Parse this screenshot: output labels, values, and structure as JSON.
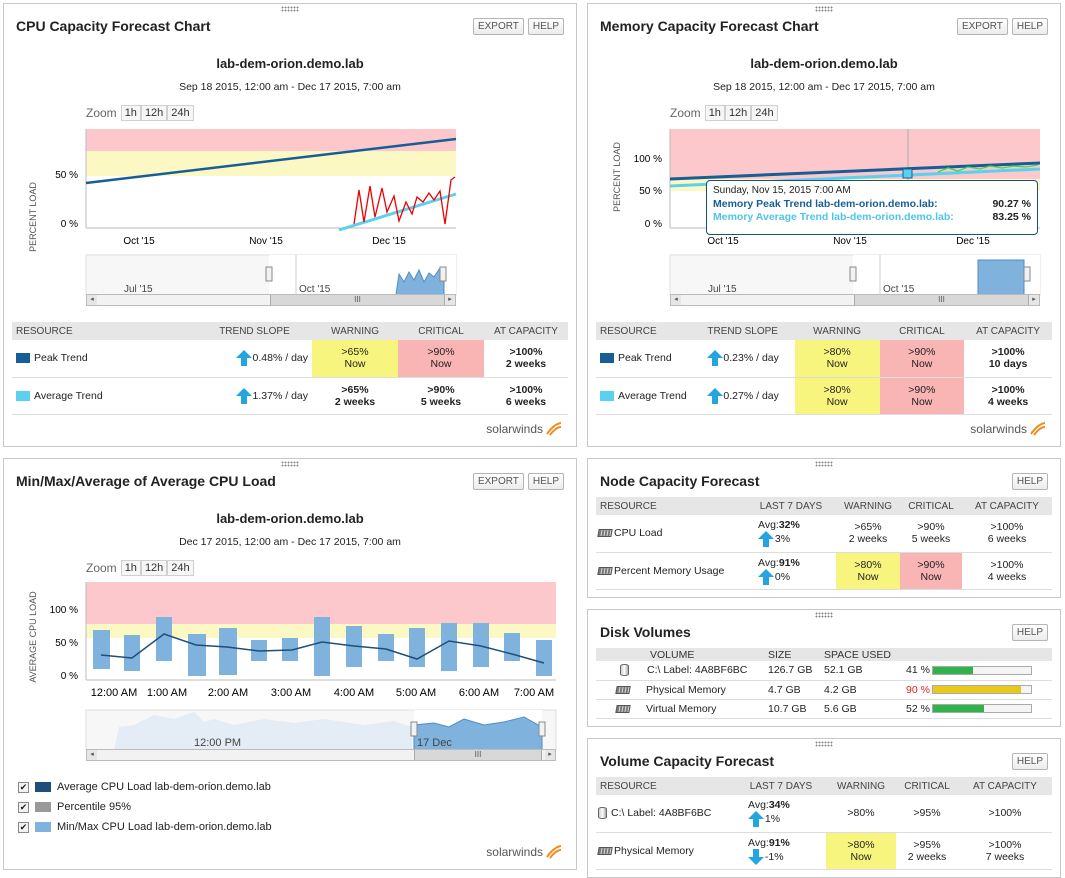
{
  "cpu_forecast": {
    "title": "CPU Capacity Forecast Chart",
    "export_label": "EXPORT",
    "help_label": "HELP",
    "node": "lab-dem-orion.demo.lab",
    "range": "Sep 18 2015, 12:00 am - Dec 17 2015, 7:00 am",
    "zoom_label": "Zoom",
    "zoom_options": [
      "1h",
      "12h",
      "24h"
    ],
    "ylabel": "PERCENT LOAD",
    "yticks": [
      "50 %",
      "0 %"
    ],
    "xticks": [
      "Oct '15",
      "Nov '15",
      "Dec '15"
    ],
    "nav_labels": [
      "Jul '15",
      "Oct '15"
    ],
    "columns": [
      "RESOURCE",
      "TREND SLOPE",
      "WARNING",
      "CRITICAL",
      "AT CAPACITY"
    ],
    "rows": [
      {
        "name": "Peak Trend",
        "color": "#175e96",
        "slope": "0.48% / day",
        "warning": ">65%",
        "warning_when": "Now",
        "critical": ">90%",
        "critical_when": "Now",
        "capacity": ">100%",
        "capacity_when": "2 weeks"
      },
      {
        "name": "Average Trend",
        "color": "#5bd0ef",
        "slope": "1.37% / day",
        "warning": ">65%",
        "warning_when": "2 weeks",
        "critical": ">90%",
        "critical_when": "5 weeks",
        "capacity": ">100%",
        "capacity_when": "6 weeks"
      }
    ],
    "logo": "solarwinds"
  },
  "mem_forecast": {
    "title": "Memory Capacity Forecast Chart",
    "export_label": "EXPORT",
    "help_label": "HELP",
    "node": "lab-dem-orion.demo.lab",
    "range": "Sep 18 2015, 12:00 am - Dec 17 2015, 7:00 am",
    "zoom_label": "Zoom",
    "zoom_options": [
      "1h",
      "12h",
      "24h"
    ],
    "ylabel": "PERCENT LOAD",
    "yticks": [
      "100 %",
      "50 %",
      "0 %"
    ],
    "xticks": [
      "Oct '15",
      "Nov '15",
      "Dec '15"
    ],
    "nav_labels": [
      "Jul '15",
      "Oct '15"
    ],
    "tooltip": {
      "date": "Sunday, Nov 15, 2015 7:00 AM",
      "peak_label": "Memory Peak Trend lab-dem-orion.demo.lab:",
      "peak_value": "90.27 %",
      "avg_label": "Memory Average Trend lab-dem-orion.demo.lab:",
      "avg_value": "83.25 %"
    },
    "columns": [
      "RESOURCE",
      "TREND SLOPE",
      "WARNING",
      "CRITICAL",
      "AT CAPACITY"
    ],
    "rows": [
      {
        "name": "Peak Trend",
        "color": "#175e96",
        "slope": "0.23% / day",
        "warning": ">80%",
        "warning_when": "Now",
        "critical": ">90%",
        "critical_when": "Now",
        "capacity": ">100%",
        "capacity_when": "10 days"
      },
      {
        "name": "Average Trend",
        "color": "#5bd0ef",
        "slope": "0.27% / day",
        "warning": ">80%",
        "warning_when": "Now",
        "critical": ">90%",
        "critical_when": "Now",
        "capacity": ">100%",
        "capacity_when": "4 weeks"
      }
    ],
    "logo": "solarwinds"
  },
  "cpu_minmax": {
    "title": "Min/Max/Average of Average CPU Load",
    "export_label": "EXPORT",
    "help_label": "HELP",
    "node": "lab-dem-orion.demo.lab",
    "range": "Dec 17 2015, 12:00 am - Dec 17 2015, 7:00 am",
    "zoom_label": "Zoom",
    "zoom_options": [
      "1h",
      "12h",
      "24h"
    ],
    "ylabel": "AVERAGE CPU LOAD",
    "yticks": [
      "100 %",
      "50 %",
      "0 %"
    ],
    "xticks": [
      "12:00 AM",
      "1:00 AM",
      "2:00 AM",
      "3:00 AM",
      "4:00 AM",
      "5:00 AM",
      "6:00 AM",
      "7:00 AM"
    ],
    "nav_labels": [
      "12:00 PM",
      "17 Dec"
    ],
    "legend": [
      {
        "label": "Average CPU Load lab-dem-orion.demo.lab",
        "color": "#1f4e79"
      },
      {
        "label": "Percentile 95%",
        "color": "#999999"
      },
      {
        "label": "Min/Max CPU Load lab-dem-orion.demo.lab",
        "color": "#7fb2dd"
      }
    ],
    "logo": "solarwinds"
  },
  "node_forecast": {
    "title": "Node Capacity Forecast",
    "help_label": "HELP",
    "columns": [
      "RESOURCE",
      "LAST 7 DAYS",
      "WARNING",
      "CRITICAL",
      "AT CAPACITY"
    ],
    "rows": [
      {
        "name": "CPU Load",
        "avg_prefix": "Avg:",
        "avg": "32%",
        "change": "3%",
        "dir": "up",
        "warning": ">65%",
        "warning_when": "2 weeks",
        "critical": ">90%",
        "critical_when": "5 weeks",
        "capacity": ">100%",
        "capacity_when": "6 weeks"
      },
      {
        "name": "Percent Memory Usage",
        "avg_prefix": "Avg:",
        "avg": "91%",
        "change": "0%",
        "dir": "up",
        "warning": ">80%",
        "warning_when": "Now",
        "critical": ">90%",
        "critical_when": "Now",
        "capacity": ">100%",
        "capacity_when": "4 weeks"
      }
    ]
  },
  "disk_volumes": {
    "title": "Disk Volumes",
    "help_label": "HELP",
    "columns": [
      "VOLUME",
      "SIZE",
      "SPACE USED"
    ],
    "rows": [
      {
        "name": "C:\\ Label: 4A8BF6BC",
        "size": "126.7 GB",
        "used": "52.1 GB",
        "pct": "41 %",
        "pct_value": 41,
        "bar_color": "#2fb34a",
        "icon": "disk-icon"
      },
      {
        "name": "Physical Memory",
        "size": "4.7 GB",
        "used": "4.2 GB",
        "pct": "90 %",
        "pct_value": 90,
        "bar_color": "#e8c81a",
        "icon": "memory-icon"
      },
      {
        "name": "Virtual Memory",
        "size": "10.7 GB",
        "used": "5.6 GB",
        "pct": "52 %",
        "pct_value": 52,
        "bar_color": "#2fb34a",
        "icon": "memory-icon"
      }
    ]
  },
  "volume_forecast": {
    "title": "Volume Capacity Forecast",
    "help_label": "HELP",
    "columns": [
      "RESOURCE",
      "LAST 7 DAYS",
      "WARNING",
      "CRITICAL",
      "AT CAPACITY"
    ],
    "rows": [
      {
        "name": "C:\\ Label: 4A8BF6BC",
        "avg_prefix": "Avg:",
        "avg": "34%",
        "change": "1%",
        "dir": "up",
        "warning": ">80%",
        "warning_when": "",
        "critical": ">95%",
        "critical_when": "",
        "capacity": ">100%",
        "capacity_when": ""
      },
      {
        "name": "Physical Memory",
        "avg_prefix": "Avg:",
        "avg": "91%",
        "change": "-1%",
        "dir": "down",
        "warning": ">80%",
        "warning_when": "Now",
        "critical": ">95%",
        "critical_when": "2 weeks",
        "capacity": ">100%",
        "capacity_when": "7 weeks"
      }
    ]
  }
}
